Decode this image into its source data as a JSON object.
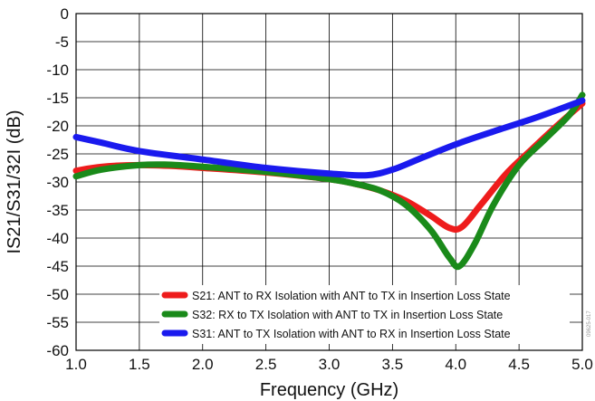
{
  "chart_data": {
    "type": "line",
    "title": "",
    "xlabel": "Frequency (GHz)",
    "ylabel": "IS21/S31/32I (dB)",
    "xlim": [
      1.0,
      5.0
    ],
    "ylim": [
      -60,
      0
    ],
    "x_ticks": [
      "1.0",
      "1.5",
      "2.0",
      "2.5",
      "3.0",
      "3.5",
      "4.0",
      "4.5",
      "5.0"
    ],
    "y_ticks": [
      "0",
      "-5",
      "-10",
      "-15",
      "-20",
      "-25",
      "-30",
      "-35",
      "-40",
      "-45",
      "-50",
      "-55",
      "-60"
    ],
    "grid": true,
    "legend_position": "bottom-right",
    "watermark": "09625-017",
    "series": [
      {
        "name": "S21: ANT to RX Isolation with ANT to TX in Insertion Loss State",
        "color": "#ee1c1c",
        "points": [
          [
            1.0,
            -28.0
          ],
          [
            1.2,
            -27.3
          ],
          [
            1.5,
            -27.0
          ],
          [
            1.8,
            -27.2
          ],
          [
            2.0,
            -27.5
          ],
          [
            2.5,
            -28.3
          ],
          [
            3.0,
            -29.5
          ],
          [
            3.2,
            -30.3
          ],
          [
            3.4,
            -31.5
          ],
          [
            3.6,
            -33.3
          ],
          [
            3.8,
            -36.0
          ],
          [
            3.95,
            -38.2
          ],
          [
            4.05,
            -38.0
          ],
          [
            4.2,
            -34.0
          ],
          [
            4.4,
            -28.5
          ],
          [
            4.6,
            -24.2
          ],
          [
            4.8,
            -20.0
          ],
          [
            5.0,
            -16.0
          ]
        ]
      },
      {
        "name": "S32: RX to TX Isolation with ANT to TX in Insertion Loss State",
        "color": "#1a8a1a",
        "points": [
          [
            1.0,
            -29.0
          ],
          [
            1.2,
            -27.8
          ],
          [
            1.5,
            -27.0
          ],
          [
            1.7,
            -26.9
          ],
          [
            2.0,
            -27.3
          ],
          [
            2.5,
            -28.2
          ],
          [
            3.0,
            -29.5
          ],
          [
            3.2,
            -30.3
          ],
          [
            3.4,
            -31.5
          ],
          [
            3.6,
            -34.0
          ],
          [
            3.8,
            -38.5
          ],
          [
            3.95,
            -43.5
          ],
          [
            4.03,
            -45.0
          ],
          [
            4.15,
            -41.0
          ],
          [
            4.3,
            -34.0
          ],
          [
            4.5,
            -27.0
          ],
          [
            4.7,
            -22.5
          ],
          [
            4.9,
            -18.0
          ],
          [
            5.0,
            -14.5
          ]
        ]
      },
      {
        "name": "S31: ANT to TX Isolation with ANT to RX in Insertion Loss State",
        "color": "#1a1aee",
        "points": [
          [
            1.0,
            -22.0
          ],
          [
            1.2,
            -23.0
          ],
          [
            1.5,
            -24.5
          ],
          [
            2.0,
            -26.0
          ],
          [
            2.5,
            -27.5
          ],
          [
            3.0,
            -28.5
          ],
          [
            3.3,
            -28.8
          ],
          [
            3.5,
            -27.8
          ],
          [
            3.7,
            -26.0
          ],
          [
            4.0,
            -23.3
          ],
          [
            4.3,
            -21.0
          ],
          [
            4.6,
            -18.8
          ],
          [
            4.8,
            -17.2
          ],
          [
            5.0,
            -15.5
          ]
        ]
      }
    ]
  }
}
